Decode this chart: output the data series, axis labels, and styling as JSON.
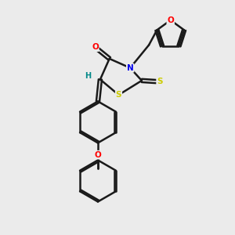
{
  "bg_color": "#ebebeb",
  "bond_color": "#1a1a1a",
  "atom_colors": {
    "O": "#ff0000",
    "N": "#0000ee",
    "S": "#cccc00",
    "H": "#008888",
    "C": "#1a1a1a"
  },
  "figsize": [
    3.0,
    3.0
  ],
  "dpi": 100,
  "xlim": [
    0,
    10
  ],
  "ylim": [
    0,
    10
  ]
}
